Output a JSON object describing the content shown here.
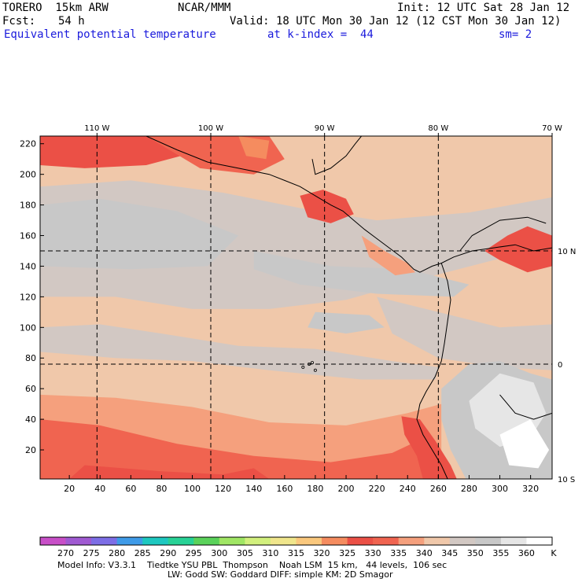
{
  "header": {
    "model": "TORERO  15km ARW",
    "org": "NCAR/MMM",
    "init": "Init: 12 UTC Sat 28 Jan 12",
    "fcst_label": "Fcst:",
    "fcst_value": "54 h",
    "valid": "Valid: 18 UTC Mon 30 Jan 12 (12 CST Mon 30 Jan 12)",
    "field": "Equivalent potential temperature",
    "level": "at k-index =  44",
    "smooth": "sm= 2"
  },
  "footer": {
    "line1": "Model Info: V3.3.1    Tiedtke YSU PBL  Thompson    Noah LSM  15 km,   44 levels,  106 sec",
    "line2": "LW: Godd SW: Goddard DIFF: simple KM: 2D Smagor"
  },
  "colors": {
    "c270": "#c84fc8",
    "c275": "#a05ad2",
    "c280": "#7d6ee6",
    "c285": "#3f9be8",
    "c290": "#1ec8c0",
    "c295": "#28d296",
    "c300": "#5ad25a",
    "c305": "#a0e664",
    "c310": "#d2f07d",
    "c315": "#f0e68c",
    "c320": "#fac87d",
    "c325": "#f58c5f",
    "c330": "#eb5046",
    "c335": "#f06450",
    "c340": "#f5a07d",
    "c345": "#f0c8aa",
    "c350": "#d2c8c3",
    "c355": "#c8c8c8",
    "c360": "#e6e6e6",
    "c365": "#ffffff",
    "grid": "#000000"
  },
  "chart_data": {
    "type": "heatmap",
    "title": "Equivalent potential temperature",
    "x_axis": {
      "label": "",
      "ticks": [
        20,
        40,
        60,
        80,
        100,
        120,
        140,
        160,
        180,
        200,
        220,
        240,
        260,
        280,
        300,
        320
      ],
      "range": [
        1,
        334
      ]
    },
    "y_axis": {
      "label": "",
      "ticks": [
        20,
        40,
        60,
        80,
        100,
        120,
        140,
        160,
        180,
        200,
        220
      ],
      "range": [
        1,
        225
      ]
    },
    "longitude_labels": [
      "110 W",
      "100 W",
      "90 W",
      "80 W",
      "70 W"
    ],
    "longitude_positions": [
      38,
      112,
      186,
      260,
      334
    ],
    "latitude_labels": [
      "10 N",
      "0",
      "10 S"
    ],
    "latitude_positions": [
      150,
      76,
      1
    ],
    "colorbar": {
      "levels": [
        "270",
        "275",
        "280",
        "285",
        "290",
        "295",
        "300",
        "305",
        "310",
        "315",
        "320",
        "325",
        "330",
        "335",
        "340",
        "345",
        "350",
        "355",
        "360"
      ],
      "unit": "K"
    },
    "dominant_ranges_K": {
      "ocean_north_band": "345-355",
      "ocean_equatorial": "340-350",
      "coastal_south": "335-345",
      "andes_highlands": "350-365",
      "mexico_coast_nw": "325-335"
    }
  }
}
